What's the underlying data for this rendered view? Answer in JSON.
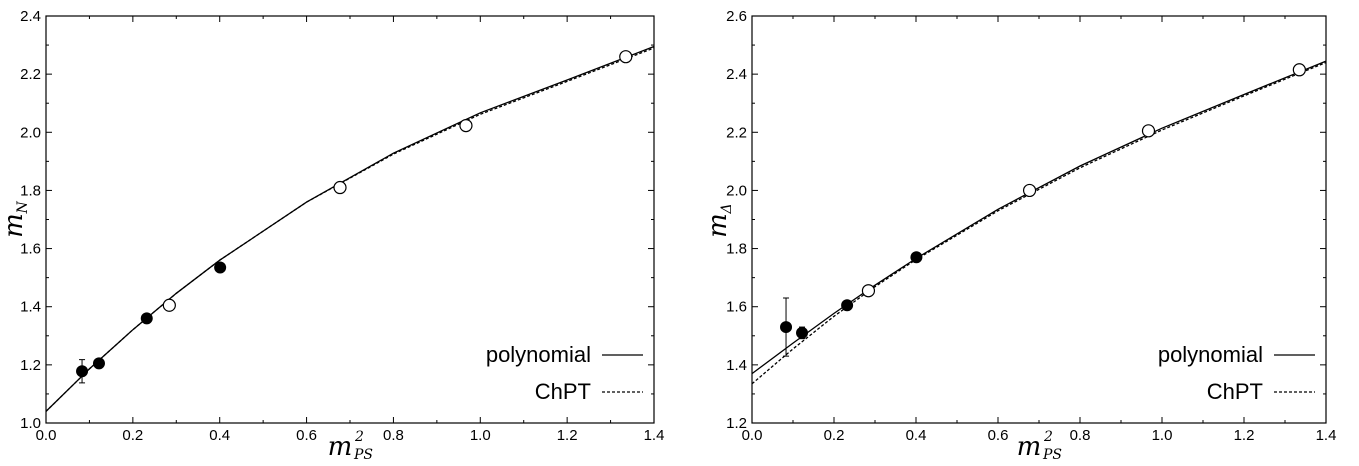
{
  "chart_data": [
    {
      "type": "scatter",
      "xlabel": "m",
      "xlabel_sup": "2",
      "xlabel_sub": "PS",
      "ylabel": "m",
      "ylabel_sub": "N",
      "xlim": [
        0.0,
        1.4
      ],
      "ylim": [
        1.0,
        2.4
      ],
      "xticks": [
        "0.0",
        "0.2",
        "0.4",
        "0.6",
        "0.8",
        "1.0",
        "1.2",
        "1.4"
      ],
      "yticks": [
        "1.0",
        "1.2",
        "1.4",
        "1.6",
        "1.8",
        "2.0",
        "2.2",
        "2.4"
      ],
      "grid": false,
      "legend_position": "bottom-right",
      "series": [
        {
          "name": "filled",
          "marker": "filled-circle",
          "points": [
            [
              0.083,
              1.178
            ],
            [
              0.122,
              1.205
            ],
            [
              0.232,
              1.36
            ],
            [
              0.401,
              1.535
            ]
          ],
          "errors": [
            0.04,
            0.012,
            0.01,
            0.008
          ]
        },
        {
          "name": "open",
          "marker": "open-circle",
          "points": [
            [
              0.284,
              1.405
            ],
            [
              0.677,
              1.81
            ],
            [
              0.967,
              2.023
            ],
            [
              1.335,
              2.26
            ]
          ],
          "errors": [
            0,
            0,
            0,
            0
          ]
        }
      ],
      "curves": [
        {
          "name": "polynomial",
          "style": "solid",
          "points": [
            [
              0.0,
              1.04
            ],
            [
              0.1,
              1.186
            ],
            [
              0.2,
              1.321
            ],
            [
              0.3,
              1.446
            ],
            [
              0.4,
              1.56
            ],
            [
              0.6,
              1.76
            ],
            [
              0.8,
              1.928
            ],
            [
              1.0,
              2.067
            ],
            [
              1.2,
              2.18
            ],
            [
              1.4,
              2.295
            ]
          ]
        },
        {
          "name": "ChPT",
          "style": "dashed",
          "points": [
            [
              0.0,
              1.04
            ],
            [
              0.1,
              1.186
            ],
            [
              0.2,
              1.321
            ],
            [
              0.3,
              1.446
            ],
            [
              0.4,
              1.56
            ],
            [
              0.6,
              1.76
            ],
            [
              0.8,
              1.925
            ],
            [
              1.0,
              2.062
            ],
            [
              1.2,
              2.175
            ],
            [
              1.4,
              2.29
            ]
          ]
        }
      ],
      "legend": [
        {
          "label": "polynomial",
          "style": "solid"
        },
        {
          "label": "ChPT",
          "style": "dashed"
        }
      ]
    },
    {
      "type": "scatter",
      "xlabel": "m",
      "xlabel_sup": "2",
      "xlabel_sub": "PS",
      "ylabel": "m",
      "ylabel_sub": "Δ",
      "xlim": [
        0.0,
        1.4
      ],
      "ylim": [
        1.2,
        2.6
      ],
      "xticks": [
        "0.0",
        "0.2",
        "0.4",
        "0.6",
        "0.8",
        "1.0",
        "1.2",
        "1.4"
      ],
      "yticks": [
        "1.2",
        "1.4",
        "1.6",
        "1.8",
        "2.0",
        "2.2",
        "2.4",
        "2.6"
      ],
      "grid": false,
      "legend_position": "bottom-right",
      "series": [
        {
          "name": "filled",
          "marker": "filled-circle",
          "points": [
            [
              0.083,
              1.53
            ],
            [
              0.122,
              1.51
            ],
            [
              0.232,
              1.605
            ],
            [
              0.401,
              1.77
            ]
          ],
          "errors": [
            0.1,
            0.02,
            0.01,
            0.01
          ]
        },
        {
          "name": "open",
          "marker": "open-circle",
          "points": [
            [
              0.284,
              1.655
            ],
            [
              0.677,
              2.0
            ],
            [
              0.967,
              2.205
            ],
            [
              1.335,
              2.415
            ]
          ],
          "errors": [
            0,
            0,
            0,
            0
          ]
        }
      ],
      "curves": [
        {
          "name": "polynomial",
          "style": "solid",
          "points": [
            [
              0.0,
              1.37
            ],
            [
              0.1,
              1.475
            ],
            [
              0.2,
              1.577
            ],
            [
              0.3,
              1.674
            ],
            [
              0.4,
              1.766
            ],
            [
              0.6,
              1.935
            ],
            [
              0.8,
              2.084
            ],
            [
              1.0,
              2.214
            ],
            [
              1.2,
              2.33
            ],
            [
              1.4,
              2.445
            ]
          ]
        },
        {
          "name": "ChPT",
          "style": "dashed",
          "points": [
            [
              0.0,
              1.335
            ],
            [
              0.1,
              1.455
            ],
            [
              0.2,
              1.567
            ],
            [
              0.3,
              1.669
            ],
            [
              0.4,
              1.762
            ],
            [
              0.6,
              1.93
            ],
            [
              0.8,
              2.078
            ],
            [
              1.0,
              2.208
            ],
            [
              1.2,
              2.325
            ],
            [
              1.4,
              2.44
            ]
          ]
        }
      ],
      "legend": [
        {
          "label": "polynomial",
          "style": "solid"
        },
        {
          "label": "ChPT",
          "style": "dashed"
        }
      ]
    }
  ]
}
